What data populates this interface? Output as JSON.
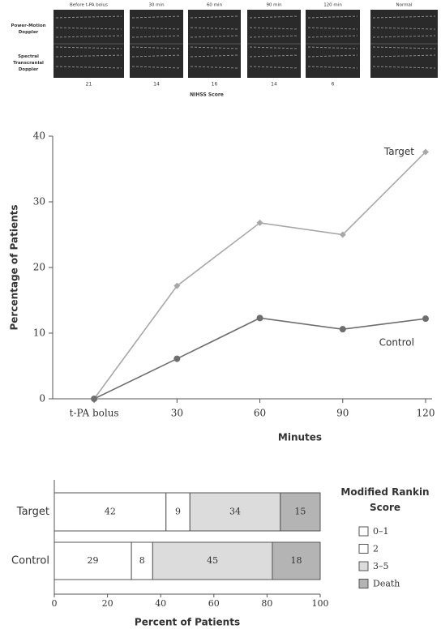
{
  "doppler_panel": {
    "time_labels": [
      "Before t-PA bolus",
      "30 min",
      "60 min",
      "90 min",
      "120 min",
      "Normal"
    ],
    "row_labels": [
      "Power-Motion Doppler",
      "Spectral Transcranial Doppler"
    ],
    "scores": [
      "21",
      "14",
      "16",
      "14",
      "6"
    ],
    "score_label": "NIHSS Score"
  },
  "chart_data": [
    {
      "type": "line",
      "x_label": "Minutes",
      "y_label": "Percentage of Patients",
      "x": [
        0,
        30,
        60,
        90,
        120
      ],
      "xlim": [
        -15,
        120
      ],
      "xticks": [
        {
          "value": 0,
          "label": "t-PA bolus"
        },
        30,
        60,
        90,
        120
      ],
      "ylim": [
        0,
        40
      ],
      "yticks": [
        0,
        10,
        20,
        30,
        40
      ],
      "series": [
        {
          "name": "Target",
          "color": "#a8a8a8",
          "marker": "diamond",
          "values": [
            0,
            17.2,
            26.8,
            25,
            37.6
          ]
        },
        {
          "name": "Control",
          "color": "#6e6e6e",
          "marker": "circle",
          "values": [
            0,
            6.1,
            12.3,
            10.6,
            12.2
          ]
        }
      ]
    },
    {
      "type": "stacked_bar",
      "orientation": "horizontal",
      "x_label": "Percent of Patients",
      "legend_title": "Modified Rankin Score",
      "legend": "right",
      "categories": [
        "Target",
        "Control"
      ],
      "xlim": [
        0,
        100
      ],
      "xticks": [
        0,
        20,
        40,
        60,
        80,
        100
      ],
      "series": [
        {
          "name": "0–1",
          "color": "#ffffff",
          "values": [
            42,
            29
          ]
        },
        {
          "name": "2",
          "color": "#ffffff",
          "values": [
            9,
            8
          ]
        },
        {
          "name": "3–5",
          "color": "#dcdcdc",
          "values": [
            34,
            45
          ]
        },
        {
          "name": "Death",
          "color": "#b4b4b4",
          "values": [
            15,
            18
          ]
        }
      ]
    }
  ]
}
